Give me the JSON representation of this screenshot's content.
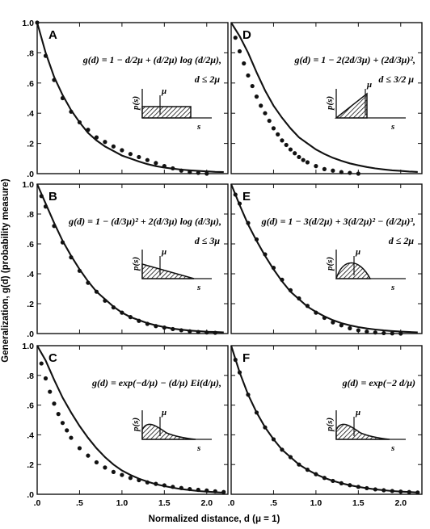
{
  "figure": {
    "ylabel": "Generalization, g(d) (probability measure)",
    "xlabel": "Normalized distance, d (μ = 1)"
  },
  "axes": {
    "xlim": [
      0,
      2.25
    ],
    "ylim": [
      0,
      1.0
    ],
    "left_yticks": [
      {
        "value": 1.0,
        "label": "1.0"
      },
      {
        "value": 0.8,
        "label": ".8"
      },
      {
        "value": 0.6,
        "label": ".6"
      },
      {
        "value": 0.4,
        "label": ".4"
      },
      {
        "value": 0.2,
        "label": ".2"
      },
      {
        "value": 0.0,
        "label": ".0"
      }
    ],
    "xticks": [
      {
        "value": 0.0,
        "label": ".0"
      },
      {
        "value": 0.5,
        "label": ".5"
      },
      {
        "value": 1.0,
        "label": "1.0"
      },
      {
        "value": 1.5,
        "label": "1.5"
      },
      {
        "value": 2.0,
        "label": "2.0"
      }
    ]
  },
  "inset_labels": {
    "ylabel": "p(s)",
    "xlabel": "s",
    "mu": "μ"
  },
  "chart_data": [
    {
      "type": "line",
      "panel": "A",
      "col": 0,
      "row": 0,
      "formula": "g(d) = 1 − d/2μ + (d/2μ) log (d/2μ),",
      "condition": "d ≤ 2μ",
      "inset": "rectangle",
      "series": [
        {
          "kind": "line",
          "x": [
            0,
            0.1,
            0.2,
            0.3,
            0.4,
            0.5,
            0.6,
            0.7,
            0.8,
            0.9,
            1.0,
            1.1,
            1.2,
            1.3,
            1.4,
            1.5,
            1.6,
            1.7,
            1.8,
            1.9,
            2.0,
            2.1,
            2.2
          ],
          "y": [
            1.0,
            0.8,
            0.64,
            0.52,
            0.42,
            0.34,
            0.27,
            0.22,
            0.18,
            0.15,
            0.12,
            0.1,
            0.08,
            0.063,
            0.05,
            0.04,
            0.033,
            0.027,
            0.022,
            0.018,
            0.015,
            0.012,
            0.01
          ]
        },
        {
          "kind": "scatter",
          "x": [
            0,
            0.1,
            0.2,
            0.3,
            0.4,
            0.5,
            0.6,
            0.7,
            0.8,
            0.9,
            1.0,
            1.1,
            1.2,
            1.3,
            1.4,
            1.5,
            1.6,
            1.7,
            1.8,
            1.9,
            2.0
          ],
          "y": [
            1.0,
            0.78,
            0.62,
            0.5,
            0.41,
            0.34,
            0.29,
            0.24,
            0.21,
            0.18,
            0.155,
            0.13,
            0.11,
            0.09,
            0.07,
            0.05,
            0.035,
            0.02,
            0.01,
            0.005,
            0.0
          ]
        }
      ]
    },
    {
      "type": "line",
      "panel": "D",
      "col": 1,
      "row": 0,
      "formula": "g(d) = 1 − 2(2d/3μ) + (2d/3μ)²,",
      "condition": "d ≤ 3/2 μ",
      "inset": "triangle",
      "series": [
        {
          "kind": "line",
          "x": [
            0,
            0.1,
            0.2,
            0.3,
            0.4,
            0.5,
            0.6,
            0.7,
            0.8,
            0.9,
            1.0,
            1.1,
            1.2,
            1.3,
            1.4,
            1.5,
            1.6,
            1.7,
            1.8,
            1.9,
            2.0,
            2.1,
            2.2
          ],
          "y": [
            1.0,
            0.91,
            0.8,
            0.67,
            0.55,
            0.45,
            0.37,
            0.3,
            0.24,
            0.2,
            0.16,
            0.13,
            0.105,
            0.085,
            0.068,
            0.055,
            0.044,
            0.035,
            0.028,
            0.022,
            0.018,
            0.014,
            0.011
          ]
        },
        {
          "kind": "scatter",
          "x": [
            0.05,
            0.1,
            0.15,
            0.2,
            0.25,
            0.3,
            0.35,
            0.4,
            0.45,
            0.5,
            0.55,
            0.6,
            0.65,
            0.7,
            0.75,
            0.8,
            0.85,
            0.9,
            1.0,
            1.1,
            1.2,
            1.3,
            1.4,
            1.5
          ],
          "y": [
            0.9,
            0.81,
            0.73,
            0.65,
            0.58,
            0.51,
            0.45,
            0.4,
            0.35,
            0.3,
            0.26,
            0.22,
            0.19,
            0.16,
            0.135,
            0.11,
            0.09,
            0.075,
            0.05,
            0.03,
            0.02,
            0.01,
            0.005,
            0.0
          ]
        }
      ]
    },
    {
      "type": "line",
      "panel": "B",
      "col": 0,
      "row": 1,
      "formula": "g(d) = 1 − (d/3μ)² + 2(d/3μ) log (d/3μ),",
      "condition": "d ≤ 3μ",
      "inset": "ramp",
      "series": [
        {
          "kind": "line",
          "x": [
            0,
            0.1,
            0.2,
            0.3,
            0.4,
            0.5,
            0.6,
            0.7,
            0.8,
            0.9,
            1.0,
            1.1,
            1.2,
            1.3,
            1.4,
            1.5,
            1.6,
            1.7,
            1.8,
            1.9,
            2.0,
            2.1,
            2.2
          ],
          "y": [
            1.0,
            0.87,
            0.74,
            0.62,
            0.52,
            0.43,
            0.35,
            0.28,
            0.23,
            0.18,
            0.14,
            0.11,
            0.09,
            0.07,
            0.055,
            0.043,
            0.033,
            0.026,
            0.02,
            0.016,
            0.012,
            0.01,
            0.008
          ]
        },
        {
          "kind": "scatter",
          "x": [
            0.05,
            0.1,
            0.2,
            0.3,
            0.4,
            0.5,
            0.6,
            0.7,
            0.8,
            0.9,
            1.0,
            1.1,
            1.2,
            1.3,
            1.4,
            1.5,
            1.6,
            1.7,
            1.8,
            1.9,
            2.0,
            2.1
          ],
          "y": [
            0.92,
            0.85,
            0.72,
            0.61,
            0.51,
            0.42,
            0.34,
            0.28,
            0.22,
            0.175,
            0.14,
            0.11,
            0.085,
            0.065,
            0.05,
            0.04,
            0.03,
            0.022,
            0.015,
            0.01,
            0.007,
            0.005
          ]
        }
      ]
    },
    {
      "type": "line",
      "panel": "E",
      "col": 1,
      "row": 1,
      "formula": "g(d) = 1 − 3(d/2μ) + 3(d/2μ)² − (d/2μ)³,",
      "condition": "d ≤ 2μ",
      "inset": "hump",
      "series": [
        {
          "kind": "line",
          "x": [
            0,
            0.1,
            0.2,
            0.3,
            0.4,
            0.5,
            0.6,
            0.7,
            0.8,
            0.9,
            1.0,
            1.1,
            1.2,
            1.3,
            1.4,
            1.5,
            1.6,
            1.7,
            1.8,
            1.9,
            2.0,
            2.1,
            2.2
          ],
          "y": [
            1.0,
            0.86,
            0.73,
            0.62,
            0.52,
            0.43,
            0.35,
            0.28,
            0.23,
            0.18,
            0.145,
            0.115,
            0.09,
            0.07,
            0.055,
            0.043,
            0.034,
            0.027,
            0.021,
            0.017,
            0.013,
            0.01,
            0.008
          ]
        },
        {
          "kind": "scatter",
          "x": [
            0.05,
            0.1,
            0.2,
            0.3,
            0.4,
            0.5,
            0.6,
            0.7,
            0.8,
            0.9,
            1.0,
            1.1,
            1.2,
            1.3,
            1.4,
            1.5,
            1.6,
            1.7,
            1.8,
            1.9,
            2.0
          ],
          "y": [
            0.93,
            0.87,
            0.74,
            0.63,
            0.53,
            0.44,
            0.36,
            0.29,
            0.235,
            0.185,
            0.14,
            0.105,
            0.075,
            0.055,
            0.035,
            0.022,
            0.013,
            0.007,
            0.003,
            0.001,
            0.0
          ]
        }
      ]
    },
    {
      "type": "line",
      "panel": "C",
      "col": 0,
      "row": 2,
      "formula": "g(d) = exp(−d/μ) − (d/μ) Ei(d/μ),",
      "condition": "",
      "inset": "decay",
      "series": [
        {
          "kind": "line",
          "x": [
            0,
            0.1,
            0.2,
            0.3,
            0.4,
            0.5,
            0.6,
            0.7,
            0.8,
            0.9,
            1.0,
            1.1,
            1.2,
            1.3,
            1.4,
            1.5,
            1.6,
            1.7,
            1.8,
            1.9,
            2.0,
            2.1,
            2.2
          ],
          "y": [
            1.0,
            0.9,
            0.77,
            0.65,
            0.55,
            0.46,
            0.38,
            0.31,
            0.25,
            0.2,
            0.16,
            0.13,
            0.105,
            0.085,
            0.068,
            0.055,
            0.044,
            0.035,
            0.028,
            0.022,
            0.018,
            0.014,
            0.011
          ]
        },
        {
          "kind": "scatter",
          "x": [
            0.05,
            0.1,
            0.15,
            0.2,
            0.25,
            0.3,
            0.35,
            0.4,
            0.5,
            0.6,
            0.7,
            0.8,
            0.9,
            1.0,
            1.1,
            1.2,
            1.3,
            1.4,
            1.5,
            1.6,
            1.7,
            1.8,
            1.9,
            2.0,
            2.1,
            2.2
          ],
          "y": [
            0.88,
            0.78,
            0.69,
            0.61,
            0.54,
            0.48,
            0.43,
            0.38,
            0.31,
            0.26,
            0.215,
            0.18,
            0.15,
            0.13,
            0.11,
            0.095,
            0.08,
            0.07,
            0.06,
            0.05,
            0.042,
            0.035,
            0.03,
            0.025,
            0.02,
            0.015
          ]
        }
      ]
    },
    {
      "type": "line",
      "panel": "F",
      "col": 1,
      "row": 2,
      "formula": "g(d) = exp(−2 d/μ)",
      "condition": "",
      "inset": "decay",
      "series": [
        {
          "kind": "line",
          "x": [
            0,
            0.1,
            0.2,
            0.3,
            0.4,
            0.5,
            0.6,
            0.7,
            0.8,
            0.9,
            1.0,
            1.1,
            1.2,
            1.3,
            1.4,
            1.5,
            1.6,
            1.7,
            1.8,
            1.9,
            2.0,
            2.1,
            2.2
          ],
          "y": [
            1.0,
            0.82,
            0.67,
            0.55,
            0.45,
            0.37,
            0.3,
            0.25,
            0.2,
            0.165,
            0.135,
            0.11,
            0.09,
            0.074,
            0.061,
            0.05,
            0.041,
            0.033,
            0.027,
            0.022,
            0.018,
            0.015,
            0.012
          ]
        },
        {
          "kind": "scatter",
          "x": [
            0.05,
            0.1,
            0.2,
            0.3,
            0.4,
            0.5,
            0.6,
            0.7,
            0.8,
            0.9,
            1.0,
            1.1,
            1.2,
            1.3,
            1.4,
            1.5,
            1.6,
            1.7,
            1.8,
            1.9,
            2.0,
            2.1,
            2.2
          ],
          "y": [
            0.905,
            0.82,
            0.67,
            0.55,
            0.45,
            0.37,
            0.3,
            0.25,
            0.2,
            0.165,
            0.135,
            0.11,
            0.09,
            0.074,
            0.061,
            0.05,
            0.041,
            0.033,
            0.027,
            0.022,
            0.018,
            0.015,
            0.012
          ]
        }
      ]
    }
  ]
}
